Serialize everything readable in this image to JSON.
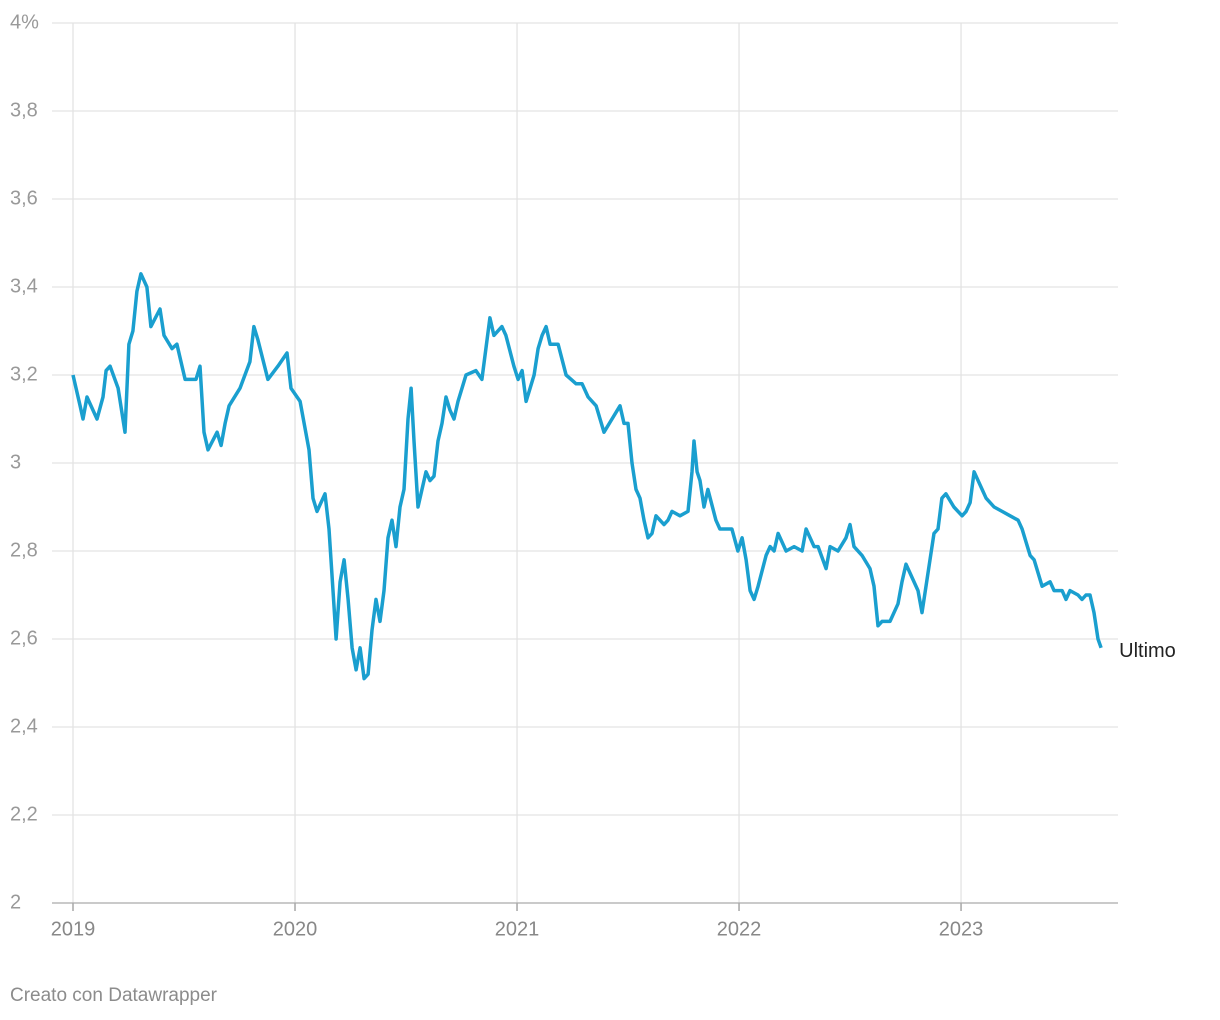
{
  "chart_data": {
    "type": "line",
    "annotation": "Ultimo",
    "source": "Creato con Datawrapper",
    "color": "#1a9fcf",
    "grid": true,
    "xlim": [
      2019,
      2023.707
    ],
    "xticks": [
      2019,
      2020,
      2021,
      2022,
      2023
    ],
    "ylim": [
      2,
      4
    ],
    "yticks": [
      {
        "value": 4,
        "label": "4%"
      },
      {
        "value": 3.8,
        "label": "3,8"
      },
      {
        "value": 3.6,
        "label": "3,6"
      },
      {
        "value": 3.4,
        "label": "3,4"
      },
      {
        "value": 3.2,
        "label": "3,2"
      },
      3,
      {
        "value": 2.8,
        "label": "2,8"
      },
      {
        "value": 2.6,
        "label": "2,6"
      },
      {
        "value": 2.4,
        "label": "2,4"
      },
      {
        "value": 2.2,
        "label": "2,2"
      },
      2
    ],
    "x": [
      2019,
      2019.032,
      2019.045,
      2019.063,
      2019.108,
      2019.135,
      2019.149,
      2019.167,
      2019.203,
      2019.234,
      2019.252,
      2019.27,
      2019.288,
      2019.306,
      2019.333,
      2019.351,
      2019.392,
      2019.41,
      2019.446,
      2019.468,
      2019.505,
      2019.554,
      2019.572,
      2019.59,
      2019.608,
      2019.649,
      2019.667,
      2019.685,
      2019.703,
      2019.752,
      2019.797,
      2019.815,
      2019.833,
      2019.878,
      2019.923,
      2019.964,
      2019.982,
      2020.023,
      2020.063,
      2020.081,
      2020.099,
      2020.135,
      2020.153,
      2020.171,
      2020.185,
      2020.203,
      2020.221,
      2020.239,
      2020.257,
      2020.275,
      2020.293,
      2020.311,
      2020.329,
      2020.347,
      2020.365,
      2020.383,
      2020.401,
      2020.419,
      2020.437,
      2020.455,
      2020.473,
      2020.491,
      2020.509,
      2020.523,
      2020.536,
      2020.554,
      2020.572,
      2020.59,
      2020.608,
      2020.626,
      2020.644,
      2020.662,
      2020.68,
      2020.698,
      2020.716,
      2020.734,
      2020.752,
      2020.77,
      2020.815,
      2020.842,
      2020.86,
      2020.878,
      2020.896,
      2020.932,
      2020.95,
      2020.986,
      2021.005,
      2021.023,
      2021.041,
      2021.059,
      2021.077,
      2021.095,
      2021.113,
      2021.131,
      2021.149,
      2021.185,
      2021.221,
      2021.266,
      2021.293,
      2021.32,
      2021.356,
      2021.392,
      2021.428,
      2021.464,
      2021.482,
      2021.5,
      2021.518,
      2021.536,
      2021.554,
      2021.572,
      2021.59,
      2021.608,
      2021.626,
      2021.662,
      2021.68,
      2021.698,
      2021.734,
      2021.77,
      2021.788,
      2021.797,
      2021.811,
      2021.824,
      2021.842,
      2021.86,
      2021.896,
      2021.914,
      2021.968,
      2021.995,
      2022.014,
      2022.032,
      2022.05,
      2022.068,
      2022.086,
      2022.122,
      2022.14,
      2022.158,
      2022.176,
      2022.212,
      2022.248,
      2022.284,
      2022.302,
      2022.338,
      2022.356,
      2022.392,
      2022.41,
      2022.446,
      2022.482,
      2022.5,
      2022.518,
      2022.554,
      2022.59,
      2022.608,
      2022.626,
      2022.644,
      2022.68,
      2022.716,
      2022.734,
      2022.752,
      2022.77,
      2022.806,
      2022.824,
      2022.842,
      2022.86,
      2022.878,
      2022.896,
      2022.914,
      2022.932,
      2022.968,
      2023.005,
      2023.023,
      2023.041,
      2023.059,
      2023.095,
      2023.113,
      2023.149,
      2023.185,
      2023.221,
      2023.257,
      2023.275,
      2023.293,
      2023.311,
      2023.329,
      2023.365,
      2023.401,
      2023.419,
      2023.455,
      2023.473,
      2023.491,
      2023.527,
      2023.545,
      2023.563,
      2023.581,
      2023.599,
      2023.617,
      2023.631
    ],
    "values": [
      3.2,
      3.13,
      3.1,
      3.15,
      3.1,
      3.15,
      3.21,
      3.22,
      3.17,
      3.07,
      3.27,
      3.3,
      3.39,
      3.43,
      3.4,
      3.31,
      3.35,
      3.29,
      3.26,
      3.27,
      3.19,
      3.19,
      3.22,
      3.07,
      3.03,
      3.07,
      3.04,
      3.09,
      3.13,
      3.17,
      3.23,
      3.31,
      3.28,
      3.19,
      3.22,
      3.25,
      3.17,
      3.14,
      3.03,
      2.92,
      2.89,
      2.93,
      2.85,
      2.71,
      2.6,
      2.73,
      2.78,
      2.69,
      2.58,
      2.53,
      2.58,
      2.51,
      2.52,
      2.62,
      2.69,
      2.64,
      2.71,
      2.83,
      2.87,
      2.81,
      2.9,
      2.94,
      3.1,
      3.17,
      3.05,
      2.9,
      2.94,
      2.98,
      2.96,
      2.97,
      3.05,
      3.09,
      3.15,
      3.12,
      3.1,
      3.14,
      3.17,
      3.2,
      3.21,
      3.19,
      3.26,
      3.33,
      3.29,
      3.31,
      3.29,
      3.22,
      3.19,
      3.21,
      3.14,
      3.17,
      3.2,
      3.26,
      3.29,
      3.31,
      3.27,
      3.27,
      3.2,
      3.18,
      3.18,
      3.15,
      3.13,
      3.07,
      3.1,
      3.13,
      3.09,
      3.09,
      3.0,
      2.94,
      2.92,
      2.87,
      2.83,
      2.84,
      2.88,
      2.86,
      2.87,
      2.89,
      2.88,
      2.89,
      2.98,
      3.05,
      2.98,
      2.96,
      2.9,
      2.94,
      2.87,
      2.85,
      2.85,
      2.8,
      2.83,
      2.78,
      2.71,
      2.69,
      2.72,
      2.79,
      2.81,
      2.8,
      2.84,
      2.8,
      2.81,
      2.8,
      2.85,
      2.81,
      2.81,
      2.76,
      2.81,
      2.8,
      2.83,
      2.86,
      2.81,
      2.79,
      2.76,
      2.72,
      2.63,
      2.64,
      2.64,
      2.68,
      2.73,
      2.77,
      2.75,
      2.71,
      2.66,
      2.72,
      2.78,
      2.84,
      2.85,
      2.92,
      2.93,
      2.9,
      2.88,
      2.89,
      2.91,
      2.98,
      2.94,
      2.92,
      2.9,
      2.89,
      2.88,
      2.87,
      2.85,
      2.82,
      2.79,
      2.78,
      2.72,
      2.73,
      2.71,
      2.71,
      2.69,
      2.71,
      2.7,
      2.69,
      2.7,
      2.7,
      2.66,
      2.6,
      2.58
    ]
  }
}
